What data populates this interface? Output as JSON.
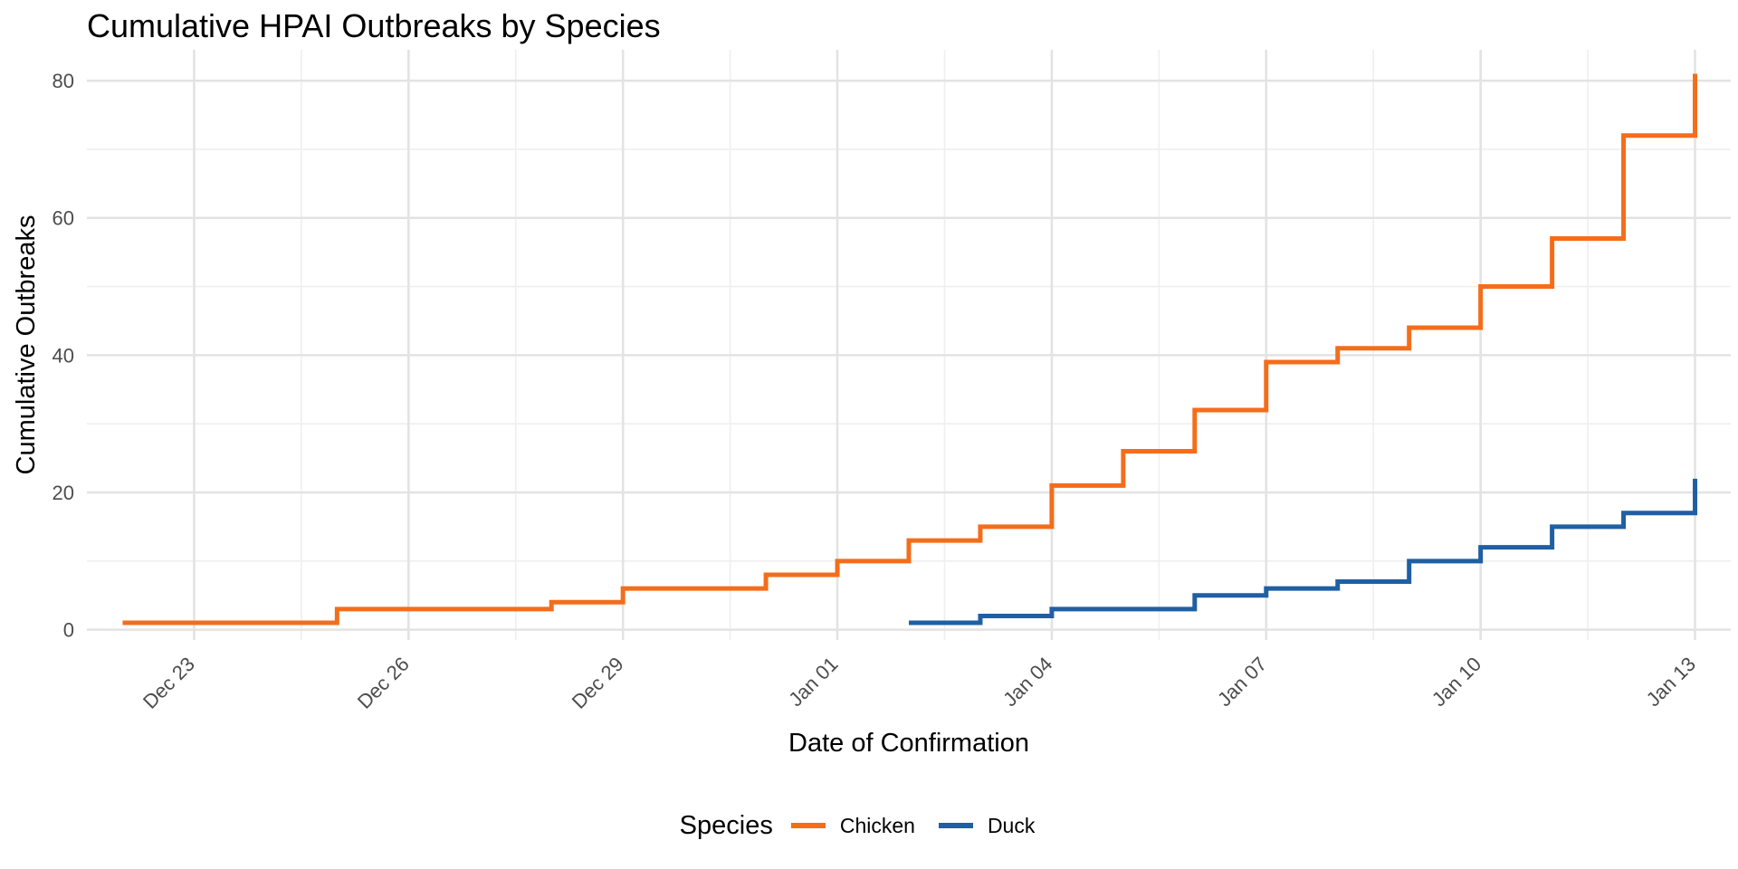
{
  "chart_data": {
    "type": "line",
    "step": true,
    "title": "Cumulative HPAI Outbreaks by Species",
    "xlabel": "Date of Confirmation",
    "ylabel": "Cumulative Outbreaks",
    "x_is_date_index": true,
    "x_ticks": [
      {
        "day": 1,
        "label": "Dec 23"
      },
      {
        "day": 4,
        "label": "Dec 26"
      },
      {
        "day": 7,
        "label": "Dec 29"
      },
      {
        "day": 10,
        "label": "Jan 01"
      },
      {
        "day": 13,
        "label": "Jan 04"
      },
      {
        "day": 16,
        "label": "Jan 07"
      },
      {
        "day": 19,
        "label": "Jan 10"
      },
      {
        "day": 22,
        "label": "Jan 13"
      }
    ],
    "xlim": [
      -0.5,
      22.5
    ],
    "ylim": [
      -1.5,
      84.5
    ],
    "y_ticks": [
      0,
      20,
      40,
      60,
      80
    ],
    "grid": true,
    "legend": {
      "title": "Species",
      "placement": "bottom"
    },
    "series": [
      {
        "name": "Chicken",
        "color": "#f46d1b",
        "points": [
          [
            0,
            1
          ],
          [
            3,
            3
          ],
          [
            6,
            4
          ],
          [
            7,
            6
          ],
          [
            9,
            8
          ],
          [
            10,
            10
          ],
          [
            11,
            13
          ],
          [
            12,
            15
          ],
          [
            13,
            21
          ],
          [
            14,
            26
          ],
          [
            15,
            32
          ],
          [
            16,
            39
          ],
          [
            17,
            41
          ],
          [
            18,
            44
          ],
          [
            19,
            50
          ],
          [
            20,
            57
          ],
          [
            21,
            72
          ],
          [
            22,
            81
          ]
        ]
      },
      {
        "name": "Duck",
        "color": "#1f5fa3",
        "points": [
          [
            11,
            1
          ],
          [
            12,
            2
          ],
          [
            13,
            3
          ],
          [
            15,
            5
          ],
          [
            16,
            6
          ],
          [
            17,
            7
          ],
          [
            18,
            10
          ],
          [
            19,
            12
          ],
          [
            20,
            15
          ],
          [
            21,
            17
          ],
          [
            22,
            22
          ]
        ]
      }
    ]
  }
}
